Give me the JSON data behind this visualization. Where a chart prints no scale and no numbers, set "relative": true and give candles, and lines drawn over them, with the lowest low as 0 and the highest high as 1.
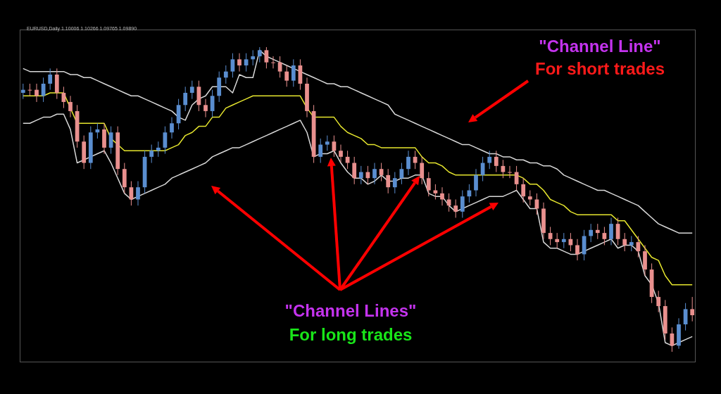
{
  "chart_data": {
    "type": "candlestick",
    "relative": true,
    "title": "EURUSD,Daily  1.10006 1.10266 1.09765 1.09890",
    "annotations": [
      "\"Channel Line\"",
      "For short trades",
      "\"Channel Lines\"",
      "For long trades"
    ],
    "categories": [
      null,
      null,
      null,
      null,
      null,
      null,
      null,
      null,
      null,
      null,
      null,
      null,
      null,
      null,
      null,
      null,
      null,
      null,
      null,
      null,
      null,
      null,
      null,
      null,
      null,
      null,
      null,
      null,
      null,
      null,
      null,
      null,
      null,
      null,
      null,
      null,
      null,
      null,
      null,
      null,
      null,
      null,
      null,
      null,
      null,
      null,
      null,
      null,
      null,
      null,
      null,
      null,
      null,
      null,
      null,
      null,
      null,
      null,
      null,
      null,
      null,
      null,
      null,
      null,
      null,
      null,
      null,
      null,
      null,
      null,
      null,
      null,
      null,
      null,
      null,
      null,
      null,
      null,
      null,
      null,
      null,
      null,
      null,
      null,
      null,
      null,
      null,
      null,
      null,
      null,
      null,
      null,
      null,
      null,
      null,
      null,
      null,
      null,
      null,
      null
    ],
    "ohlc": [
      [
        0.85,
        0.88,
        0.83,
        0.86
      ],
      [
        0.86,
        0.88,
        0.84,
        0.86
      ],
      [
        0.86,
        0.88,
        0.82,
        0.84
      ],
      [
        0.84,
        0.9,
        0.82,
        0.88
      ],
      [
        0.88,
        0.93,
        0.86,
        0.91
      ],
      [
        0.91,
        0.93,
        0.83,
        0.85
      ],
      [
        0.85,
        0.87,
        0.8,
        0.82
      ],
      [
        0.82,
        0.84,
        0.77,
        0.79
      ],
      [
        0.79,
        0.81,
        0.67,
        0.69
      ],
      [
        0.69,
        0.71,
        0.6,
        0.62
      ],
      [
        0.62,
        0.74,
        0.6,
        0.72
      ],
      [
        0.72,
        0.75,
        0.7,
        0.73
      ],
      [
        0.73,
        0.75,
        0.65,
        0.67
      ],
      [
        0.67,
        0.74,
        0.65,
        0.72
      ],
      [
        0.72,
        0.74,
        0.58,
        0.6
      ],
      [
        0.6,
        0.62,
        0.52,
        0.54
      ],
      [
        0.54,
        0.56,
        0.48,
        0.5
      ],
      [
        0.5,
        0.56,
        0.48,
        0.54
      ],
      [
        0.54,
        0.66,
        0.52,
        0.64
      ],
      [
        0.64,
        0.68,
        0.62,
        0.66
      ],
      [
        0.66,
        0.69,
        0.64,
        0.67
      ],
      [
        0.67,
        0.74,
        0.65,
        0.72
      ],
      [
        0.72,
        0.77,
        0.7,
        0.75
      ],
      [
        0.75,
        0.83,
        0.73,
        0.81
      ],
      [
        0.81,
        0.87,
        0.79,
        0.85
      ],
      [
        0.85,
        0.89,
        0.83,
        0.87
      ],
      [
        0.87,
        0.89,
        0.79,
        0.81
      ],
      [
        0.81,
        0.83,
        0.77,
        0.79
      ],
      [
        0.79,
        0.86,
        0.77,
        0.84
      ],
      [
        0.84,
        0.92,
        0.82,
        0.9
      ],
      [
        0.9,
        0.94,
        0.88,
        0.92
      ],
      [
        0.92,
        0.98,
        0.9,
        0.96
      ],
      [
        0.96,
        0.98,
        0.92,
        0.94
      ],
      [
        0.94,
        0.98,
        0.92,
        0.96
      ],
      [
        0.96,
        0.99,
        0.94,
        0.97
      ],
      [
        0.97,
        1,
        0.95,
        0.99
      ],
      [
        0.99,
        1,
        0.93,
        0.95
      ],
      [
        0.95,
        0.97,
        0.93,
        0.95
      ],
      [
        0.95,
        0.97,
        0.9,
        0.92
      ],
      [
        0.92,
        0.94,
        0.87,
        0.89
      ],
      [
        0.89,
        0.96,
        0.87,
        0.94
      ],
      [
        0.94,
        0.96,
        0.86,
        0.88
      ],
      [
        0.88,
        0.9,
        0.77,
        0.79
      ],
      [
        0.79,
        0.81,
        0.62,
        0.64
      ],
      [
        0.64,
        0.7,
        0.62,
        0.68
      ],
      [
        0.68,
        0.71,
        0.66,
        0.69
      ],
      [
        0.69,
        0.71,
        0.64,
        0.66
      ],
      [
        0.66,
        0.68,
        0.62,
        0.64
      ],
      [
        0.64,
        0.66,
        0.6,
        0.62
      ],
      [
        0.62,
        0.64,
        0.55,
        0.57
      ],
      [
        0.57,
        0.61,
        0.55,
        0.59
      ],
      [
        0.59,
        0.61,
        0.55,
        0.57
      ],
      [
        0.57,
        0.62,
        0.55,
        0.6
      ],
      [
        0.6,
        0.62,
        0.56,
        0.58
      ],
      [
        0.58,
        0.6,
        0.52,
        0.54
      ],
      [
        0.54,
        0.59,
        0.52,
        0.57
      ],
      [
        0.57,
        0.62,
        0.55,
        0.6
      ],
      [
        0.6,
        0.66,
        0.58,
        0.64
      ],
      [
        0.64,
        0.66,
        0.6,
        0.62
      ],
      [
        0.62,
        0.64,
        0.55,
        0.57
      ],
      [
        0.57,
        0.59,
        0.51,
        0.53
      ],
      [
        0.53,
        0.55,
        0.5,
        0.52
      ],
      [
        0.52,
        0.54,
        0.48,
        0.5
      ],
      [
        0.5,
        0.52,
        0.46,
        0.48
      ],
      [
        0.48,
        0.5,
        0.44,
        0.46
      ],
      [
        0.46,
        0.53,
        0.44,
        0.51
      ],
      [
        0.51,
        0.55,
        0.49,
        0.53
      ],
      [
        0.53,
        0.6,
        0.51,
        0.58
      ],
      [
        0.58,
        0.64,
        0.56,
        0.62
      ],
      [
        0.62,
        0.66,
        0.6,
        0.64
      ],
      [
        0.64,
        0.66,
        0.59,
        0.61
      ],
      [
        0.61,
        0.63,
        0.57,
        0.59
      ],
      [
        0.59,
        0.61,
        0.57,
        0.59
      ],
      [
        0.59,
        0.61,
        0.53,
        0.55
      ],
      [
        0.55,
        0.57,
        0.49,
        0.51
      ],
      [
        0.51,
        0.53,
        0.48,
        0.5
      ],
      [
        0.5,
        0.52,
        0.45,
        0.47
      ],
      [
        0.47,
        0.49,
        0.37,
        0.39
      ],
      [
        0.39,
        0.41,
        0.35,
        0.37
      ],
      [
        0.37,
        0.39,
        0.34,
        0.36
      ],
      [
        0.36,
        0.39,
        0.34,
        0.37
      ],
      [
        0.37,
        0.39,
        0.33,
        0.35
      ],
      [
        0.35,
        0.37,
        0.3,
        0.32
      ],
      [
        0.32,
        0.4,
        0.3,
        0.38
      ],
      [
        0.38,
        0.42,
        0.36,
        0.4
      ],
      [
        0.4,
        0.42,
        0.37,
        0.39
      ],
      [
        0.39,
        0.41,
        0.35,
        0.37
      ],
      [
        0.37,
        0.44,
        0.35,
        0.42
      ],
      [
        0.42,
        0.44,
        0.35,
        0.37
      ],
      [
        0.37,
        0.39,
        0.33,
        0.35
      ],
      [
        0.35,
        0.38,
        0.33,
        0.36
      ],
      [
        0.36,
        0.38,
        0.31,
        0.33
      ],
      [
        0.33,
        0.35,
        0.25,
        0.27
      ],
      [
        0.27,
        0.29,
        0.16,
        0.18
      ],
      [
        0.18,
        0.2,
        0.13,
        0.15
      ],
      [
        0.15,
        0.17,
        0.04,
        0.06
      ],
      [
        0.06,
        0.08,
        0,
        0.02
      ],
      [
        0.02,
        0.11,
        0.01,
        0.09
      ],
      [
        0.09,
        0.16,
        0.07,
        0.14
      ],
      [
        0.14,
        0.18,
        0.1,
        0.12
      ]
    ],
    "colors": [
      "#5a8ed0",
      "#e9908e",
      "#e9908e",
      "#5a8ed0",
      "#5a8ed0",
      "#e9908e",
      "#e9908e",
      "#e9908e",
      "#e9908e",
      "#e9908e",
      "#5a8ed0",
      "#5a8ed0",
      "#e9908e",
      "#5a8ed0",
      "#e9908e",
      "#e9908e",
      "#e9908e",
      "#5a8ed0",
      "#5a8ed0",
      "#5a8ed0",
      "#5a8ed0",
      "#5a8ed0",
      "#5a8ed0",
      "#5a8ed0",
      "#5a8ed0",
      "#5a8ed0",
      "#e9908e",
      "#e9908e",
      "#5a8ed0",
      "#5a8ed0",
      "#5a8ed0",
      "#5a8ed0",
      "#e9908e",
      "#5a8ed0",
      "#5a8ed0",
      "#5a8ed0",
      "#e9908e",
      "#e9908e",
      "#e9908e",
      "#e9908e",
      "#5a8ed0",
      "#e9908e",
      "#e9908e",
      "#e9908e",
      "#5a8ed0",
      "#5a8ed0",
      "#e9908e",
      "#e9908e",
      "#e9908e",
      "#e9908e",
      "#5a8ed0",
      "#e9908e",
      "#5a8ed0",
      "#e9908e",
      "#e9908e",
      "#5a8ed0",
      "#5a8ed0",
      "#5a8ed0",
      "#e9908e",
      "#e9908e",
      "#e9908e",
      "#e9908e",
      "#e9908e",
      "#e9908e",
      "#e9908e",
      "#5a8ed0",
      "#5a8ed0",
      "#5a8ed0",
      "#5a8ed0",
      "#5a8ed0",
      "#e9908e",
      "#e9908e",
      "#e9908e",
      "#e9908e",
      "#e9908e",
      "#e9908e",
      "#e9908e",
      "#e9908e",
      "#e9908e",
      "#e9908e",
      "#5a8ed0",
      "#e9908e",
      "#e9908e",
      "#5a8ed0",
      "#5a8ed0",
      "#e9908e",
      "#e9908e",
      "#5a8ed0",
      "#e9908e",
      "#e9908e",
      "#5a8ed0",
      "#e9908e",
      "#e9908e",
      "#e9908e",
      "#e9908e",
      "#e9908e",
      "#e9908e",
      "#5a8ed0",
      "#5a8ed0",
      "#e9908e"
    ],
    "series": [
      {
        "type": "line",
        "color": "#e6e62e",
        "values": [
          0.84,
          0.84,
          0.84,
          0.84,
          0.85,
          0.85,
          0.85,
          0.8,
          0.75,
          0.75,
          0.75,
          0.75,
          0.75,
          0.7,
          0.68,
          0.66,
          0.66,
          0.66,
          0.66,
          0.66,
          0.66,
          0.66,
          0.67,
          0.68,
          0.71,
          0.72,
          0.74,
          0.74,
          0.77,
          0.77,
          0.8,
          0.81,
          0.82,
          0.83,
          0.84,
          0.84,
          0.84,
          0.84,
          0.84,
          0.84,
          0.84,
          0.84,
          0.8,
          0.77,
          0.77,
          0.77,
          0.77,
          0.74,
          0.72,
          0.71,
          0.7,
          0.68,
          0.68,
          0.67,
          0.67,
          0.67,
          0.67,
          0.67,
          0.67,
          0.64,
          0.62,
          0.62,
          0.61,
          0.59,
          0.58,
          0.58,
          0.58,
          0.58,
          0.58,
          0.58,
          0.58,
          0.58,
          0.58,
          0.58,
          0.57,
          0.55,
          0.55,
          0.53,
          0.5,
          0.49,
          0.48,
          0.46,
          0.45,
          0.45,
          0.45,
          0.45,
          0.45,
          0.45,
          0.43,
          0.43,
          0.4,
          0.37,
          0.34,
          0.31,
          0.3,
          0.25,
          0.22,
          0.22,
          0.22,
          0.22
        ]
      },
      {
        "type": "line",
        "color": "#d8d8d8",
        "values": [
          0.93,
          0.92,
          0.92,
          0.92,
          0.92,
          0.92,
          0.92,
          0.91,
          0.91,
          0.9,
          0.9,
          0.89,
          0.88,
          0.87,
          0.86,
          0.85,
          0.84,
          0.84,
          0.83,
          0.82,
          0.81,
          0.8,
          0.79,
          0.77,
          0.76,
          0.81,
          0.83,
          0.84,
          0.87,
          0.87,
          0.87,
          0.85,
          0.91,
          0.9,
          0.9,
          0.99,
          0.97,
          0.96,
          0.95,
          0.94,
          0.93,
          0.92,
          0.91,
          0.9,
          0.89,
          0.88,
          0.88,
          0.87,
          0.87,
          0.86,
          0.85,
          0.84,
          0.83,
          0.82,
          0.81,
          0.78,
          0.77,
          0.76,
          0.75,
          0.74,
          0.73,
          0.72,
          0.71,
          0.7,
          0.69,
          0.68,
          0.68,
          0.67,
          0.66,
          0.65,
          0.65,
          0.64,
          0.64,
          0.63,
          0.63,
          0.62,
          0.62,
          0.61,
          0.61,
          0.6,
          0.58,
          0.57,
          0.56,
          0.55,
          0.54,
          0.53,
          0.53,
          0.52,
          0.51,
          0.5,
          0.49,
          0.48,
          0.46,
          0.44,
          0.42,
          0.41,
          0.4,
          0.39,
          0.39,
          0.39
        ]
      },
      {
        "type": "line",
        "color": "#d8d8d8",
        "values": [
          0.75,
          0.75,
          0.76,
          0.77,
          0.77,
          0.78,
          0.78,
          0.73,
          0.62,
          0.63,
          0.64,
          0.65,
          0.66,
          0.62,
          0.57,
          0.52,
          0.5,
          0.51,
          0.52,
          0.53,
          0.54,
          0.55,
          0.57,
          0.58,
          0.59,
          0.6,
          0.61,
          0.62,
          0.64,
          0.65,
          0.66,
          0.67,
          0.67,
          0.68,
          0.69,
          0.7,
          0.71,
          0.72,
          0.73,
          0.74,
          0.75,
          0.76,
          0.72,
          0.64,
          0.65,
          0.65,
          0.66,
          0.62,
          0.59,
          0.57,
          0.57,
          0.55,
          0.56,
          0.58,
          0.56,
          0.56,
          0.57,
          0.57,
          0.58,
          0.58,
          0.52,
          0.51,
          0.51,
          0.48,
          0.46,
          0.47,
          0.48,
          0.49,
          0.5,
          0.51,
          0.51,
          0.51,
          0.52,
          0.53,
          0.5,
          0.47,
          0.47,
          0.36,
          0.34,
          0.34,
          0.33,
          0.32,
          0.32,
          0.33,
          0.34,
          0.35,
          0.36,
          0.37,
          0.34,
          0.35,
          0.35,
          0.33,
          0.25,
          0.22,
          0.16,
          0.03,
          0.02,
          0.03,
          0.04,
          0.05
        ]
      }
    ]
  }
}
